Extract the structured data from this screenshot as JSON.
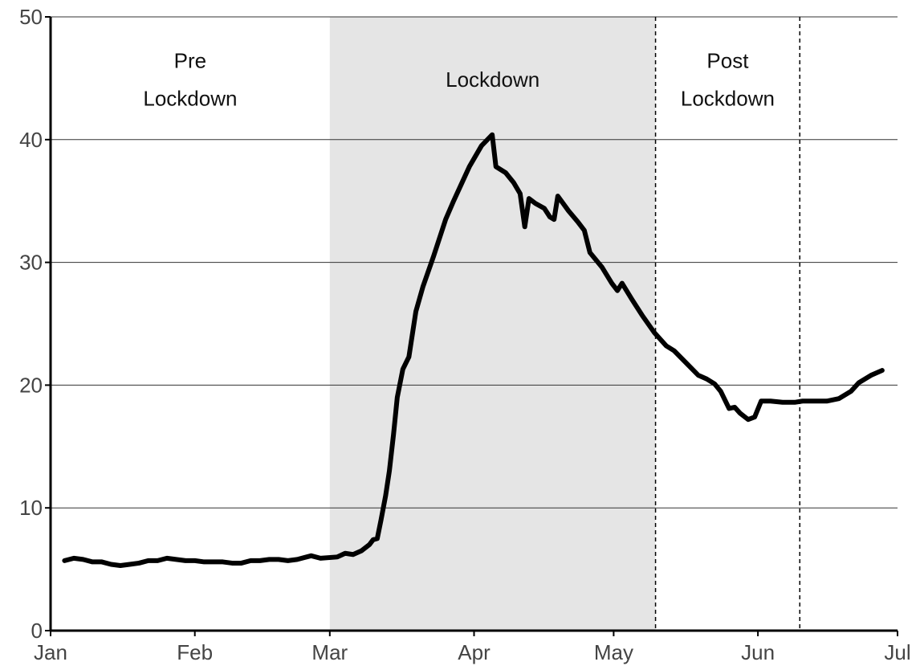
{
  "chart_data": {
    "type": "line",
    "x": [
      3,
      5,
      7,
      9,
      11,
      13,
      15,
      17,
      19,
      21,
      23,
      25,
      27,
      29,
      31,
      33,
      35,
      37,
      39,
      41,
      43,
      45,
      47,
      49,
      51,
      53,
      55,
      56,
      58,
      61.6,
      63.3,
      65,
      66.8,
      68.5,
      69.3,
      70.2,
      71,
      72,
      72.8,
      73.7,
      74.5,
      75.7,
      77,
      78.5,
      80,
      82.3,
      84.9,
      86.6,
      88.3,
      90,
      92.6,
      94.9,
      95.7,
      97.8,
      99.5,
      100.9,
      101.9,
      102.8,
      104.2,
      106.1,
      107.3,
      108.2,
      109,
      111.3,
      113.3,
      114.7,
      115.9,
      118.5,
      120.6,
      121.8,
      122.8,
      124.9,
      127.1,
      129.7,
      132.3,
      134,
      136.6,
      139.2,
      141,
      142.7,
      144,
      145.8,
      147,
      148.2,
      149.9,
      151.3,
      152.7,
      154.7,
      157.3,
      159.9,
      161.6,
      164.2,
      166.8,
      169.4,
      172,
      173.7,
      176.3,
      178.7
    ],
    "series": [
      {
        "color": "#000000",
        "values": [
          5.7,
          5.9,
          5.8,
          5.6,
          5.6,
          5.4,
          5.3,
          5.4,
          5.5,
          5.7,
          5.7,
          5.9,
          5.8,
          5.7,
          5.7,
          5.6,
          5.6,
          5.6,
          5.5,
          5.5,
          5.7,
          5.7,
          5.8,
          5.8,
          5.7,
          5.8,
          6.0,
          6.1,
          5.9,
          6.0,
          6.3,
          6.2,
          6.5,
          7.0,
          7.4,
          7.5,
          9,
          11,
          13,
          16,
          19,
          21.3,
          22.3,
          26,
          28,
          30.5,
          33.5,
          35,
          36.4,
          37.8,
          39.5,
          40.4,
          37.8,
          37.3,
          36.5,
          35.6,
          32.9,
          35.2,
          34.8,
          34.4,
          33.7,
          33.5,
          35.4,
          34.2,
          33.3,
          32.6,
          30.8,
          29.6,
          28.3,
          27.7,
          28.3,
          27.0,
          25.7,
          24.3,
          23.2,
          22.8,
          21.8,
          20.8,
          20.5,
          20.1,
          19.5,
          18.1,
          18.2,
          17.7,
          17.2,
          17.4,
          18.7,
          18.7,
          18.6,
          18.6,
          18.7,
          18.7,
          18.7,
          18.9,
          19.5,
          20.2,
          20.8,
          21.2
        ]
      }
    ],
    "xlim": [
      0,
      182
    ],
    "xticks": [
      {
        "value": 0,
        "label": "Jan"
      },
      {
        "value": 31,
        "label": "Feb"
      },
      {
        "value": 60,
        "label": "Mar"
      },
      {
        "value": 91,
        "label": "Apr"
      },
      {
        "value": 121,
        "label": "May"
      },
      {
        "value": 152,
        "label": "Jun"
      },
      {
        "value": 182,
        "label": "Jul"
      }
    ],
    "ylim": [
      0,
      50
    ],
    "yticks": [
      0,
      10,
      20,
      30,
      40,
      50
    ],
    "grid": true,
    "regions": [
      {
        "x0": 0,
        "x1": 60,
        "label": [
          "Pre",
          "Lockdown"
        ]
      },
      {
        "x0": 60,
        "x1": 130,
        "label": [
          "Lockdown"
        ],
        "color": "#e5e5e5"
      },
      {
        "x0": 130,
        "x1": 161,
        "label": [
          "Post",
          "Lockdown"
        ]
      }
    ],
    "dashed_lines": [
      130,
      161
    ]
  }
}
